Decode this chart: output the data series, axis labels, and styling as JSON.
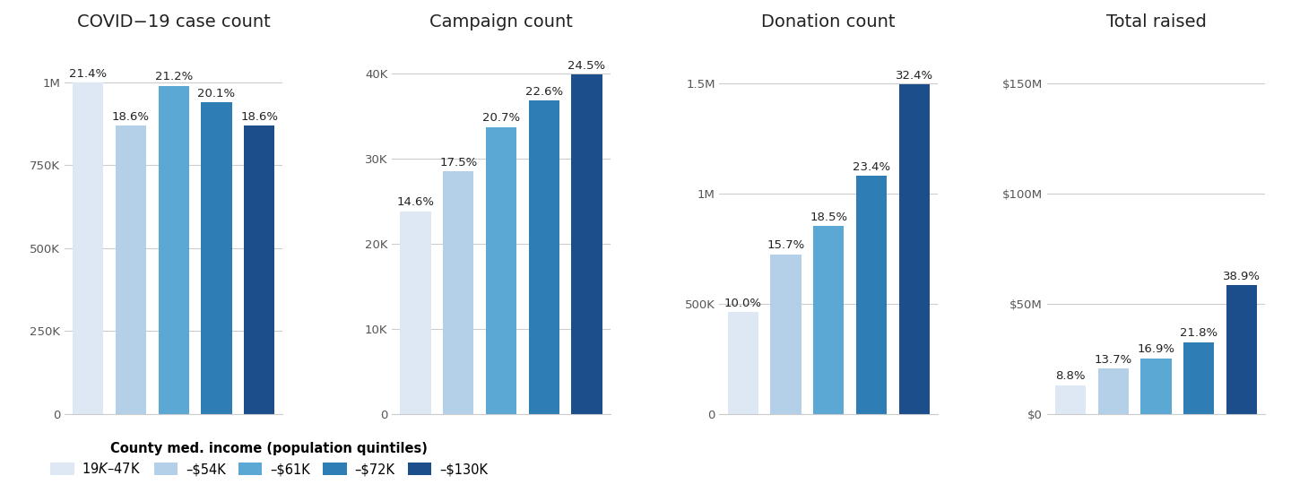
{
  "subplots": [
    {
      "title": "COVID−19 case count",
      "values": [
        1000000,
        870000,
        990000,
        940000,
        870000
      ],
      "percentages": [
        "21.4%",
        "18.6%",
        "21.2%",
        "20.1%",
        "18.6%"
      ],
      "yticks": [
        0,
        250000,
        500000,
        750000,
        1000000
      ],
      "yticklabels": [
        "0",
        "250K",
        "500K",
        "750K",
        "1M"
      ],
      "ylim": [
        0,
        1130000
      ]
    },
    {
      "title": "Campaign count",
      "values": [
        23800,
        28500,
        33700,
        36800,
        39900
      ],
      "percentages": [
        "14.6%",
        "17.5%",
        "20.7%",
        "22.6%",
        "24.5%"
      ],
      "yticks": [
        0,
        10000,
        20000,
        30000,
        40000
      ],
      "yticklabels": [
        "0",
        "10K",
        "20K",
        "30K",
        "40K"
      ],
      "ylim": [
        0,
        44000
      ]
    },
    {
      "title": "Donation count",
      "values": [
        462000,
        725200,
        854200,
        1080400,
        1495200
      ],
      "percentages": [
        "10.0%",
        "15.7%",
        "18.5%",
        "23.4%",
        "32.4%"
      ],
      "yticks": [
        0,
        500000,
        1000000,
        1500000
      ],
      "yticklabels": [
        "0",
        "500K",
        "1M",
        "1.5M"
      ],
      "ylim": [
        0,
        1700000
      ]
    },
    {
      "title": "Total raised",
      "values": [
        13200000,
        20550000,
        25350000,
        32700000,
        58350000
      ],
      "percentages": [
        "8.8%",
        "13.7%",
        "16.9%",
        "21.8%",
        "38.9%"
      ],
      "yticks": [
        0,
        50000000,
        100000000,
        150000000
      ],
      "yticklabels": [
        "$0",
        "$50M",
        "$100M",
        "$150M"
      ],
      "ylim": [
        0,
        170000000
      ]
    }
  ],
  "colors": [
    "#dde8f4",
    "#b3d0e8",
    "#5ba8d4",
    "#2f7db5",
    "#1b4e8a"
  ],
  "legend_labels": [
    "$19K–$47K",
    "–$54K",
    "–$61K",
    "–$72K",
    "–$130K"
  ],
  "legend_title": "County med. income (population quintiles)",
  "bg_color": "#ffffff",
  "bar_width": 0.72,
  "pct_fontsize": 9.5,
  "title_fontsize": 14,
  "tick_fontsize": 9.5,
  "legend_fontsize": 10.5
}
